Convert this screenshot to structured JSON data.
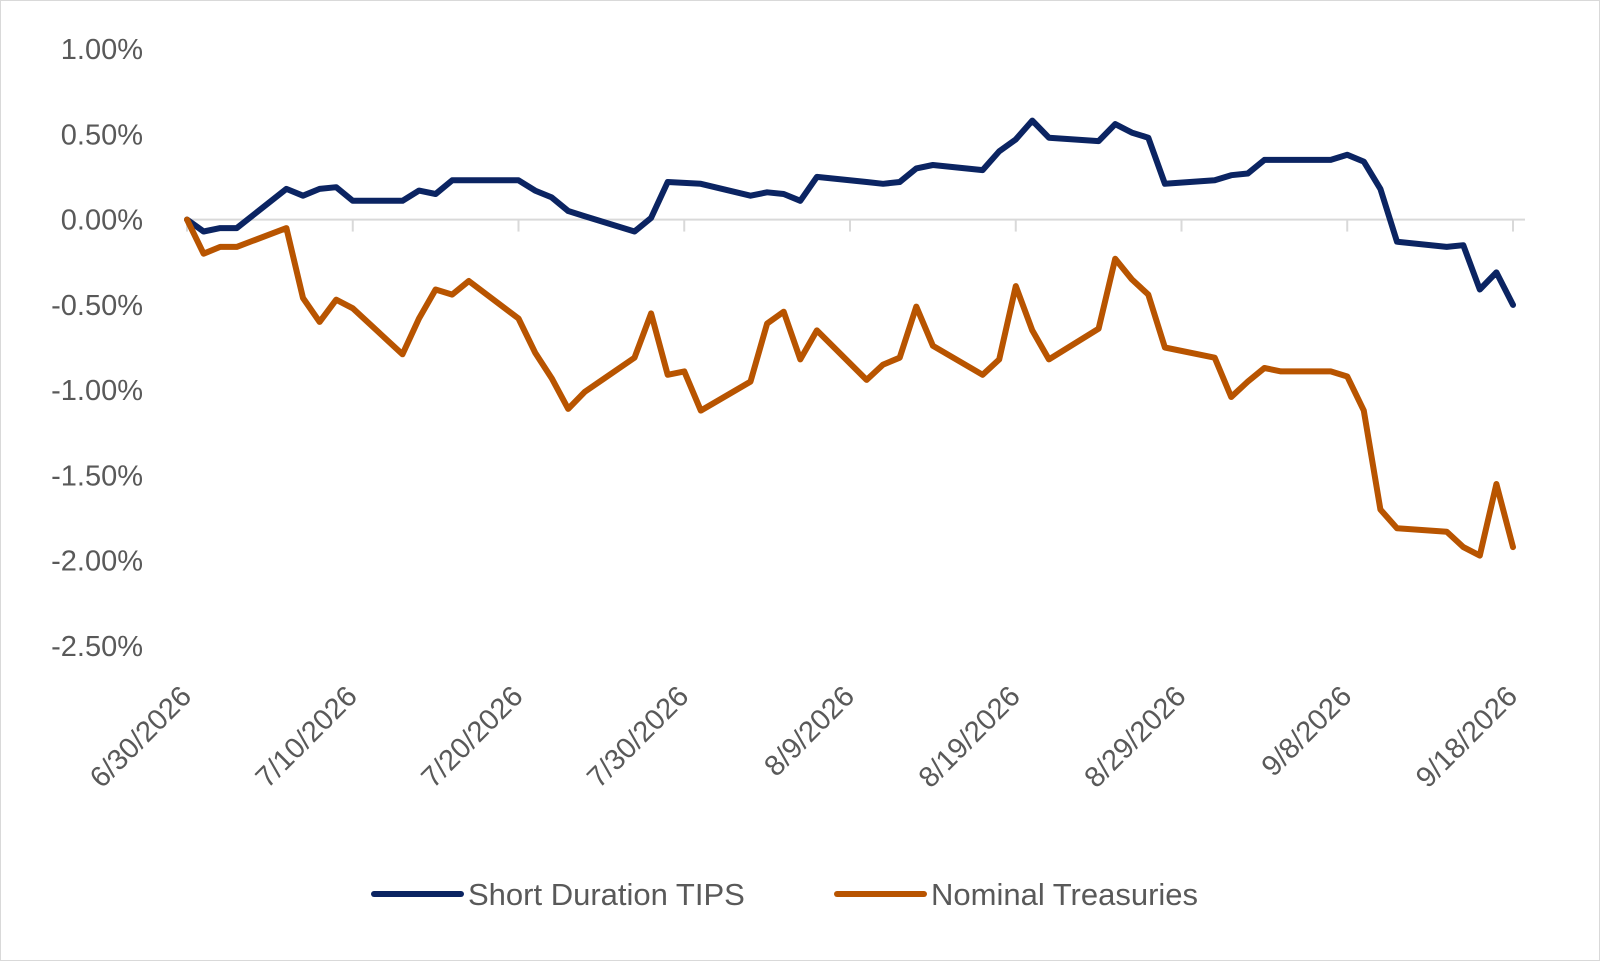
{
  "chart_data": {
    "type": "line",
    "title": "",
    "xlabel": "",
    "ylabel": "",
    "x_start": "6/30/2026",
    "x_end": "9/18/2026",
    "x_ticks": [
      "6/30/2026",
      "7/10/2026",
      "7/20/2026",
      "7/30/2026",
      "8/9/2026",
      "8/19/2026",
      "8/29/2026",
      "9/8/2026",
      "9/18/2026"
    ],
    "y_ticks": [
      "1.00%",
      "0.50%",
      "0.00%",
      "-0.50%",
      "-1.00%",
      "-1.50%",
      "-2.00%",
      "-2.50%"
    ],
    "ylim": [
      -2.5,
      1.0
    ],
    "grid": false,
    "legend_position": "bottom",
    "series": [
      {
        "name": "Short Duration TIPS",
        "color": "#0b2462",
        "points": [
          [
            "6/30/2026",
            0.0
          ],
          [
            "7/1/2026",
            -0.07
          ],
          [
            "7/2/2026",
            -0.05
          ],
          [
            "7/3/2026",
            -0.05
          ],
          [
            "7/6/2026",
            0.18
          ],
          [
            "7/7/2026",
            0.14
          ],
          [
            "7/8/2026",
            0.18
          ],
          [
            "7/9/2026",
            0.19
          ],
          [
            "7/10/2026",
            0.11
          ],
          [
            "7/13/2026",
            0.11
          ],
          [
            "7/14/2026",
            0.17
          ],
          [
            "7/15/2026",
            0.15
          ],
          [
            "7/16/2026",
            0.23
          ],
          [
            "7/17/2026",
            0.23
          ],
          [
            "7/20/2026",
            0.23
          ],
          [
            "7/21/2026",
            0.17
          ],
          [
            "7/22/2026",
            0.13
          ],
          [
            "7/23/2026",
            0.05
          ],
          [
            "7/24/2026",
            0.02
          ],
          [
            "7/27/2026",
            -0.07
          ],
          [
            "7/28/2026",
            0.01
          ],
          [
            "7/29/2026",
            0.22
          ],
          [
            "7/31/2026",
            0.21
          ],
          [
            "8/3/2026",
            0.14
          ],
          [
            "8/4/2026",
            0.16
          ],
          [
            "8/5/2026",
            0.15
          ],
          [
            "8/6/2026",
            0.11
          ],
          [
            "8/7/2026",
            0.25
          ],
          [
            "8/10/2026",
            0.22
          ],
          [
            "8/11/2026",
            0.21
          ],
          [
            "8/12/2026",
            0.22
          ],
          [
            "8/13/2026",
            0.3
          ],
          [
            "8/14/2026",
            0.32
          ],
          [
            "8/17/2026",
            0.29
          ],
          [
            "8/18/2026",
            0.4
          ],
          [
            "8/19/2026",
            0.47
          ],
          [
            "8/20/2026",
            0.58
          ],
          [
            "8/21/2026",
            0.48
          ],
          [
            "8/24/2026",
            0.46
          ],
          [
            "8/25/2026",
            0.56
          ],
          [
            "8/26/2026",
            0.51
          ],
          [
            "8/27/2026",
            0.48
          ],
          [
            "8/28/2026",
            0.21
          ],
          [
            "8/31/2026",
            0.23
          ],
          [
            "9/1/2026",
            0.26
          ],
          [
            "9/2/2026",
            0.27
          ],
          [
            "9/3/2026",
            0.35
          ],
          [
            "9/4/2026",
            0.35
          ],
          [
            "9/7/2026",
            0.35
          ],
          [
            "9/8/2026",
            0.38
          ],
          [
            "9/9/2026",
            0.34
          ],
          [
            "9/10/2026",
            0.18
          ],
          [
            "9/11/2026",
            -0.13
          ],
          [
            "9/14/2026",
            -0.16
          ],
          [
            "9/15/2026",
            -0.15
          ],
          [
            "9/16/2026",
            -0.41
          ],
          [
            "9/17/2026",
            -0.31
          ],
          [
            "9/18/2026",
            -0.5
          ]
        ]
      },
      {
        "name": "Nominal Treasuries",
        "color": "#b85400",
        "points": [
          [
            "6/30/2026",
            0.0
          ],
          [
            "7/1/2026",
            -0.2
          ],
          [
            "7/2/2026",
            -0.16
          ],
          [
            "7/3/2026",
            -0.16
          ],
          [
            "7/6/2026",
            -0.05
          ],
          [
            "7/7/2026",
            -0.46
          ],
          [
            "7/8/2026",
            -0.6
          ],
          [
            "7/9/2026",
            -0.47
          ],
          [
            "7/10/2026",
            -0.52
          ],
          [
            "7/13/2026",
            -0.79
          ],
          [
            "7/14/2026",
            -0.58
          ],
          [
            "7/15/2026",
            -0.41
          ],
          [
            "7/16/2026",
            -0.44
          ],
          [
            "7/17/2026",
            -0.36
          ],
          [
            "7/20/2026",
            -0.58
          ],
          [
            "7/21/2026",
            -0.78
          ],
          [
            "7/22/2026",
            -0.93
          ],
          [
            "7/23/2026",
            -1.11
          ],
          [
            "7/24/2026",
            -1.01
          ],
          [
            "7/27/2026",
            -0.81
          ],
          [
            "7/28/2026",
            -0.55
          ],
          [
            "7/29/2026",
            -0.91
          ],
          [
            "7/30/2026",
            -0.89
          ],
          [
            "7/31/2026",
            -1.12
          ],
          [
            "8/3/2026",
            -0.95
          ],
          [
            "8/4/2026",
            -0.61
          ],
          [
            "8/5/2026",
            -0.54
          ],
          [
            "8/6/2026",
            -0.82
          ],
          [
            "8/7/2026",
            -0.65
          ],
          [
            "8/10/2026",
            -0.94
          ],
          [
            "8/11/2026",
            -0.85
          ],
          [
            "8/12/2026",
            -0.81
          ],
          [
            "8/13/2026",
            -0.51
          ],
          [
            "8/14/2026",
            -0.74
          ],
          [
            "8/17/2026",
            -0.91
          ],
          [
            "8/18/2026",
            -0.82
          ],
          [
            "8/19/2026",
            -0.39
          ],
          [
            "8/20/2026",
            -0.65
          ],
          [
            "8/21/2026",
            -0.82
          ],
          [
            "8/24/2026",
            -0.64
          ],
          [
            "8/25/2026",
            -0.23
          ],
          [
            "8/26/2026",
            -0.35
          ],
          [
            "8/27/2026",
            -0.44
          ],
          [
            "8/28/2026",
            -0.75
          ],
          [
            "8/31/2026",
            -0.81
          ],
          [
            "9/1/2026",
            -1.04
          ],
          [
            "9/2/2026",
            -0.95
          ],
          [
            "9/3/2026",
            -0.87
          ],
          [
            "9/4/2026",
            -0.89
          ],
          [
            "9/7/2026",
            -0.89
          ],
          [
            "9/8/2026",
            -0.92
          ],
          [
            "9/9/2026",
            -1.12
          ],
          [
            "9/10/2026",
            -1.7
          ],
          [
            "9/11/2026",
            -1.81
          ],
          [
            "9/14/2026",
            -1.83
          ],
          [
            "9/15/2026",
            -1.92
          ],
          [
            "9/16/2026",
            -1.97
          ],
          [
            "9/17/2026",
            -1.55
          ],
          [
            "9/18/2026",
            -1.92
          ]
        ]
      }
    ]
  }
}
